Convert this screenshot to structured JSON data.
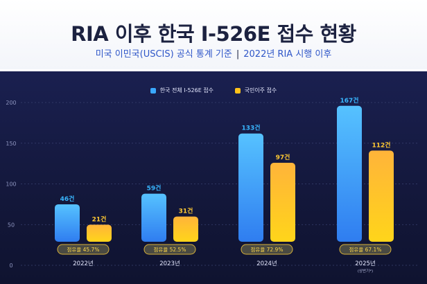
{
  "header": {
    "title": "RIA 이후 한국 I-526E 접수 현황",
    "subtitle_left": "미국 이민국(USCIS) 공식 통계 기준",
    "subtitle_sep": "|",
    "subtitle_right": "2022년 RIA 시행 이후"
  },
  "colors": {
    "series1": "#3aa8ff",
    "series2": "#ffc21a",
    "series1_label": "#39b6ff",
    "series2_label": "#ffc933",
    "grid": "#3a4170"
  },
  "chart_data": {
    "type": "bar",
    "title": "RIA 이후 한국 I-526E 접수 현황",
    "categories": [
      "2022년",
      "2023년",
      "2024년",
      "2025년"
    ],
    "category_notes": [
      "",
      "",
      "",
      "(상반기*)"
    ],
    "series": [
      {
        "name": "한국 전체 I-526E 접수",
        "values": [
          46,
          59,
          133,
          167
        ],
        "labels": [
          "46건",
          "59건",
          "133건",
          "167건"
        ]
      },
      {
        "name": "국민이주 접수",
        "values": [
          21,
          31,
          97,
          112
        ],
        "labels": [
          "21건",
          "31건",
          "97건",
          "112건"
        ]
      }
    ],
    "share_labels": [
      "점유율 45.7%",
      "점유율 52.5%",
      "점유율 72.9%",
      "점유율 67.1%"
    ],
    "yticks": [
      0,
      50,
      100,
      150,
      200
    ],
    "ylim": [
      0,
      200
    ],
    "grid": true,
    "legend": "top-center"
  }
}
